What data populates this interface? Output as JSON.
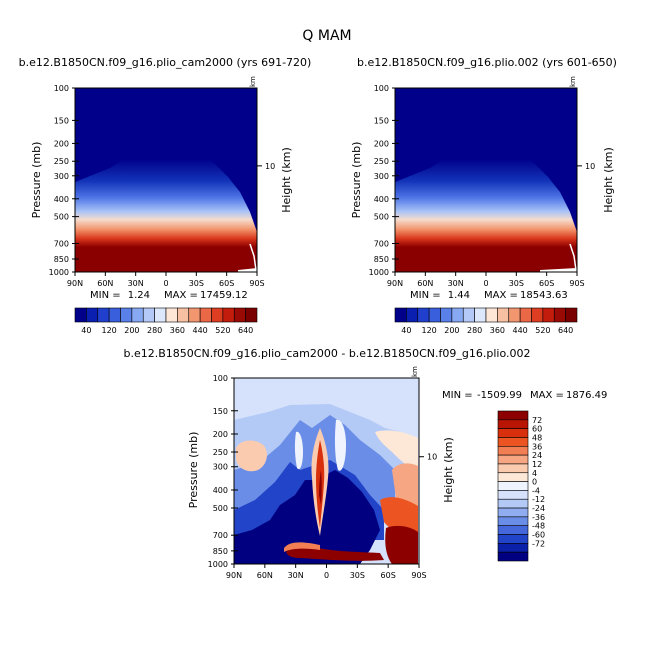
{
  "chart_data": {
    "type": "heatmap",
    "title": "Q  MAM",
    "x_ticks": [
      "90N",
      "60N",
      "30N",
      "0",
      "30S",
      "60S",
      "90S"
    ],
    "p_ticks": [
      100,
      150,
      200,
      250,
      300,
      400,
      500,
      700,
      850,
      1000
    ],
    "p_tick_labels": [
      "100",
      "150",
      "200",
      "250",
      "300",
      "400",
      "500",
      "700",
      "850",
      "1000"
    ],
    "height_tick": "10",
    "height_corner": "km",
    "ylabel": "Pressure (mb)",
    "ylabel_right": "Height (km)",
    "panels": [
      {
        "id": "cam2000",
        "title": "b.e12.B1850CN.f09_g16.plio_cam2000 (yrs 691-720)",
        "min_label": "MIN =",
        "min_value": "1.24",
        "max_label": "MAX =",
        "max_value": "17459.12",
        "colorbar_labels": [
          "40",
          "120",
          "200",
          "280",
          "360",
          "440",
          "520",
          "640"
        ],
        "colorbar_colors": [
          "#00008a",
          "#0a1fb0",
          "#1f3fcc",
          "#3a5fdd",
          "#5a80ea",
          "#87a8f3",
          "#b4c9f8",
          "#dde7fb",
          "#fde6d6",
          "#f8c0a2",
          "#f2966f",
          "#ea6845",
          "#dd3d21",
          "#c21d0c",
          "#9a0a04",
          "#7a0000"
        ]
      },
      {
        "id": "plio002",
        "title": "b.e12.B1850CN.f09_g16.plio.002 (yrs 601-650)",
        "min_label": "MIN =",
        "min_value": "1.44",
        "max_label": "MAX =",
        "max_value": "18543.63",
        "colorbar_labels": [
          "40",
          "120",
          "200",
          "280",
          "360",
          "440",
          "520",
          "640"
        ],
        "colorbar_colors": [
          "#00008a",
          "#0a1fb0",
          "#1f3fcc",
          "#3a5fdd",
          "#5a80ea",
          "#87a8f3",
          "#b4c9f8",
          "#dde7fb",
          "#fde6d6",
          "#f8c0a2",
          "#f2966f",
          "#ea6845",
          "#dd3d21",
          "#c21d0c",
          "#9a0a04",
          "#7a0000"
        ]
      }
    ],
    "difference": {
      "title": "b.e12.B1850CN.f09_g16.plio_cam2000 - b.e12.B1850CN.f09_g16.plio.002",
      "min_label": "MIN =",
      "min_value": "-1509.99",
      "max_label": "MAX =",
      "max_value": "1876.49",
      "colorbar_labels": [
        "72",
        "60",
        "48",
        "36",
        "24",
        "12",
        "4",
        "0",
        "-4",
        "-12",
        "-24",
        "-36",
        "-48",
        "-60",
        "-72"
      ],
      "colorbar_colors": [
        "#8c0000",
        "#b81505",
        "#d8300c",
        "#ec5522",
        "#f27e54",
        "#f7a683",
        "#fbcbb0",
        "#fde8d8",
        "#eef3fd",
        "#d6e2fb",
        "#b3c9f6",
        "#8fadf0",
        "#6a8de7",
        "#4468dc",
        "#2244c8",
        "#0b20a8",
        "#000080"
      ]
    }
  }
}
